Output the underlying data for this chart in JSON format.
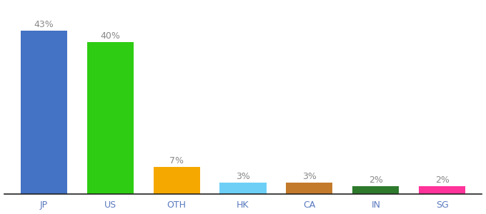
{
  "categories": [
    "JP",
    "US",
    "OTH",
    "HK",
    "CA",
    "IN",
    "SG"
  ],
  "values": [
    43,
    40,
    7,
    3,
    3,
    2,
    2
  ],
  "bar_colors": [
    "#4472c4",
    "#2ecc12",
    "#f5a800",
    "#6dcff6",
    "#c47a2b",
    "#2d7a2d",
    "#ff3399"
  ],
  "labels": [
    "43%",
    "40%",
    "7%",
    "3%",
    "3%",
    "2%",
    "2%"
  ],
  "label_color": "#888888",
  "background_color": "#ffffff",
  "ylim": [
    0,
    50
  ],
  "bar_width": 0.7,
  "label_fontsize": 9,
  "tick_fontsize": 9,
  "tick_color": "#5a7abf"
}
